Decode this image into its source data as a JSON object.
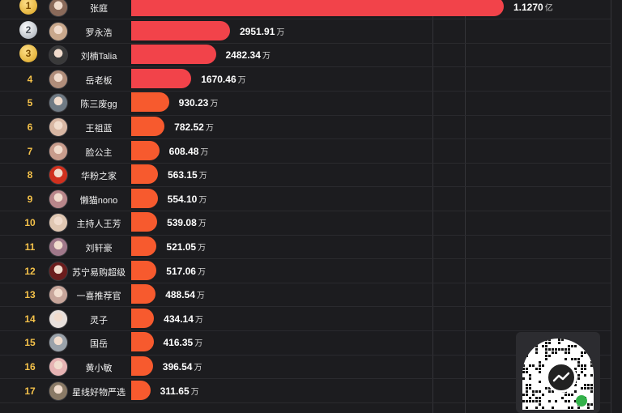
{
  "chart_data": {
    "type": "bar",
    "orientation": "horizontal",
    "grid": true,
    "rows": [
      {
        "rank": "1",
        "name": "张庭",
        "value": 11270,
        "label": "1.1270",
        "unit": "亿"
      },
      {
        "rank": "2",
        "name": "罗永浩",
        "value": 2951.91,
        "label": "2951.91",
        "unit": "万"
      },
      {
        "rank": "3",
        "name": "刘楠Talia",
        "value": 2482.34,
        "label": "2482.34",
        "unit": "万"
      },
      {
        "rank": "4",
        "name": "岳老板",
        "value": 1670.46,
        "label": "1670.46",
        "unit": "万"
      },
      {
        "rank": "5",
        "name": "陈三废gg",
        "value": 930.23,
        "label": "930.23",
        "unit": "万"
      },
      {
        "rank": "6",
        "name": "王祖蓝",
        "value": 782.52,
        "label": "782.52",
        "unit": "万"
      },
      {
        "rank": "7",
        "name": "脸公主",
        "value": 608.48,
        "label": "608.48",
        "unit": "万"
      },
      {
        "rank": "8",
        "name": "华粉之家",
        "value": 563.15,
        "label": "563.15",
        "unit": "万"
      },
      {
        "rank": "9",
        "name": "懒猫nono",
        "value": 554.1,
        "label": "554.10",
        "unit": "万"
      },
      {
        "rank": "10",
        "name": "主持人王芳",
        "value": 539.08,
        "label": "539.08",
        "unit": "万"
      },
      {
        "rank": "11",
        "name": "刘轩豪",
        "value": 521.05,
        "label": "521.05",
        "unit": "万"
      },
      {
        "rank": "12",
        "name": "苏宁易购超级",
        "value": 517.06,
        "label": "517.06",
        "unit": "万"
      },
      {
        "rank": "13",
        "name": "一喜推荐官",
        "value": 488.54,
        "label": "488.54",
        "unit": "万"
      },
      {
        "rank": "14",
        "name": "灵子",
        "value": 434.14,
        "label": "434.14",
        "unit": "万"
      },
      {
        "rank": "15",
        "name": "国岳",
        "value": 416.35,
        "label": "416.35",
        "unit": "万"
      },
      {
        "rank": "16",
        "name": "黄小敏",
        "value": 396.54,
        "label": "396.54",
        "unit": "万"
      },
      {
        "rank": "17",
        "name": "星线好物严选",
        "value": 311.65,
        "label": "311.65",
        "unit": "万"
      }
    ]
  },
  "colors": {
    "bar_top": "#f2434a",
    "bar_low": "#f75a2e",
    "rank_text": "#f5c24a",
    "background": "#1c1c1f"
  },
  "icons": {
    "medal_1": "gold-medal-icon",
    "medal_2": "silver-medal-icon",
    "medal_3": "gold-medal-icon",
    "qr": "qr-code-icon"
  }
}
